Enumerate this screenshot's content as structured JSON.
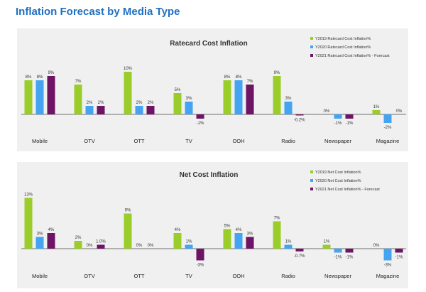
{
  "page": {
    "title": "Inflation Forecast by Media Type"
  },
  "colors": {
    "y2019": "#9acd2a",
    "y2020": "#44a4f2",
    "y2021": "#6e1464"
  },
  "chart_data": [
    {
      "type": "bar",
      "title": "Ratecard Cost Inflation",
      "categories": [
        "Mobile",
        "OTV",
        "OTT",
        "TV",
        "OOH",
        "Radio",
        "Newspaper",
        "Magazine"
      ],
      "series": [
        {
          "name": "Y2019 Ratecard Cost Inflation%",
          "values": [
            8,
            7,
            10,
            5,
            8,
            9,
            0,
            1
          ],
          "labels": [
            "8%",
            "7%",
            "10%",
            "5%",
            "8%",
            "9%",
            "0%",
            "1%"
          ]
        },
        {
          "name": "Y2020 Ratecard Cost Inflation%",
          "values": [
            8,
            2,
            2,
            3,
            8,
            3,
            -1,
            -2
          ],
          "labels": [
            "8%",
            "2%",
            "2%",
            "3%",
            "8%",
            "3%",
            "-1%",
            "-2%"
          ]
        },
        {
          "name": "Y2021 Ratecard Cost Inflation% - Forecast",
          "values": [
            9,
            2,
            2,
            -1,
            7,
            -0.2,
            -1,
            0
          ],
          "labels": [
            "9%",
            "2%",
            "2%",
            "-1%",
            "7%",
            "-0.2%",
            "-1%",
            "0%"
          ]
        }
      ],
      "ylim": [
        -3,
        10
      ],
      "legend": "top-right"
    },
    {
      "type": "bar",
      "title": "Net Cost Inflation",
      "categories": [
        "Mobile",
        "OTV",
        "OTT",
        "TV",
        "OOH",
        "Radio",
        "Newspaper",
        "Magazine"
      ],
      "series": [
        {
          "name": "Y2019 Net Cost Inflation%",
          "values": [
            13,
            2,
            9,
            4,
            5,
            7,
            1,
            0
          ],
          "labels": [
            "13%",
            "2%",
            "9%",
            "4%",
            "5%",
            "7%",
            "1%",
            "0%"
          ]
        },
        {
          "name": "Y2020 Net Cost Inflation%",
          "values": [
            3,
            0,
            0,
            1,
            4,
            1,
            -1,
            -3
          ],
          "labels": [
            "3%",
            "0%",
            "0%",
            "1%",
            "4%",
            "1%",
            "-1%",
            "-3%"
          ]
        },
        {
          "name": "Y2021 Net Cost Inflation% - Forecast",
          "values": [
            4,
            1,
            0,
            -3,
            3,
            -0.7,
            -1,
            -1
          ],
          "labels": [
            "4%",
            "1.0%",
            "0%",
            "-3%",
            "3%",
            "-0.7%",
            "-1%",
            "-1%"
          ]
        }
      ],
      "ylim": [
        -4,
        13
      ],
      "legend": "top-right"
    }
  ]
}
